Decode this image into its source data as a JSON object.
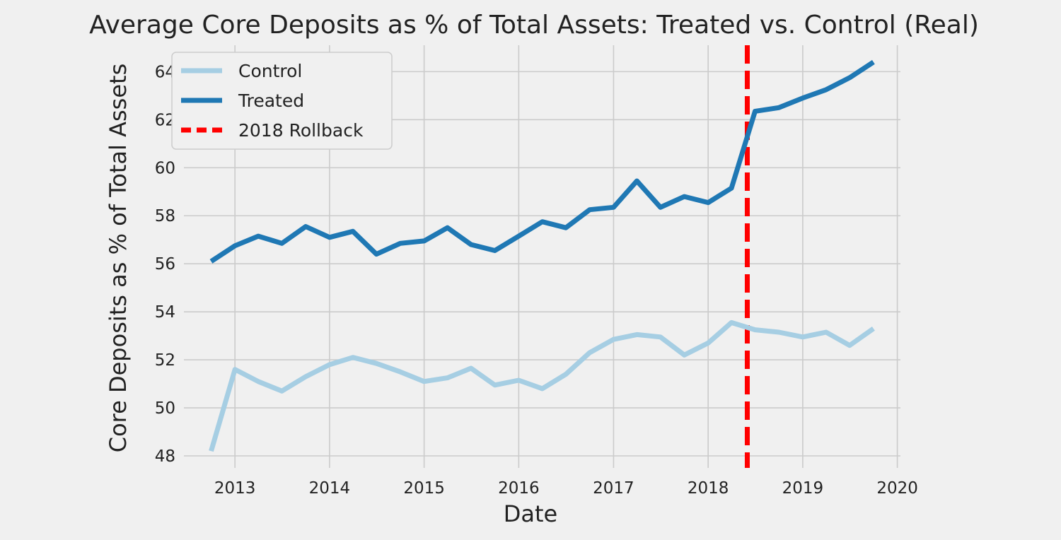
{
  "chart_data": {
    "type": "line",
    "title": "Average Core Deposits as % of Total Assets: Treated vs. Control (Real)",
    "xlabel": "Date",
    "ylabel": "Core Deposits as % of Total Assets",
    "xlim": [
      "2012-06-18",
      "2020-01-13"
    ],
    "ylim": [
      47.5,
      65.1
    ],
    "x_ticks": [
      "2013-01-01",
      "2014-01-01",
      "2015-01-01",
      "2016-01-01",
      "2017-01-01",
      "2018-01-01",
      "2019-01-01",
      "2020-01-01"
    ],
    "x_tick_labels": [
      "2013",
      "2014",
      "2015",
      "2016",
      "2017",
      "2018",
      "2019",
      "2020"
    ],
    "y_ticks": [
      48,
      50,
      52,
      54,
      56,
      58,
      60,
      62,
      64
    ],
    "y_tick_labels": [
      "48",
      "50",
      "52",
      "54",
      "56",
      "58",
      "60",
      "62",
      "64"
    ],
    "grid": true,
    "legend_position": "top-left",
    "x": [
      "2012-10-01",
      "2013-01-01",
      "2013-04-01",
      "2013-07-01",
      "2013-10-01",
      "2014-01-01",
      "2014-04-01",
      "2014-07-01",
      "2014-10-01",
      "2015-01-01",
      "2015-04-01",
      "2015-07-01",
      "2015-10-01",
      "2016-01-01",
      "2016-04-01",
      "2016-07-01",
      "2016-10-01",
      "2017-01-01",
      "2017-04-01",
      "2017-07-01",
      "2017-10-01",
      "2018-01-01",
      "2018-04-01",
      "2018-07-01",
      "2018-10-01",
      "2019-01-01",
      "2019-04-01",
      "2019-07-01",
      "2019-10-01"
    ],
    "series": [
      {
        "name": "Control",
        "color": "#a6cee3",
        "values": [
          48.2,
          51.6,
          51.1,
          50.7,
          51.3,
          51.8,
          52.1,
          51.85,
          51.5,
          51.1,
          51.25,
          51.65,
          50.95,
          51.15,
          50.8,
          51.4,
          52.3,
          52.85,
          53.05,
          52.95,
          52.2,
          52.7,
          53.55,
          53.25,
          53.15,
          52.95,
          53.15,
          52.6,
          53.3
        ]
      },
      {
        "name": "Treated",
        "color": "#1f78b4",
        "values": [
          56.1,
          56.75,
          57.15,
          56.85,
          57.55,
          57.1,
          57.35,
          56.4,
          56.85,
          56.95,
          57.5,
          56.8,
          56.55,
          57.15,
          57.75,
          57.5,
          58.25,
          58.35,
          59.45,
          58.35,
          58.8,
          58.55,
          59.15,
          62.35,
          62.5,
          62.9,
          63.25,
          63.75,
          64.4
        ]
      }
    ],
    "reference_line": {
      "name": "2018 Rollback",
      "x": "2018-06-01",
      "color": "#ff0000",
      "style": "dashed"
    },
    "legend": [
      "Control",
      "Treated",
      "2018 Rollback"
    ]
  }
}
